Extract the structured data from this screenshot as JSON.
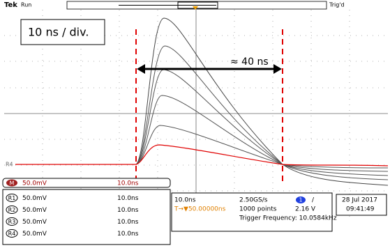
{
  "header": {
    "brand": "Tek",
    "status": "Run",
    "trigger_state": "Trig'd"
  },
  "annotations": {
    "scale": "10 ns / div.",
    "width": "≈ 40 ns"
  },
  "screen": {
    "ref_marker": "R4"
  },
  "math_row": {
    "label": "M",
    "scale": "50.0mV",
    "time": "10.0ns"
  },
  "ref_rows": [
    {
      "label": "R1",
      "scale": "50.0mV",
      "time": "10.0ns"
    },
    {
      "label": "R2",
      "scale": "50.0mV",
      "time": "10.0ns"
    },
    {
      "label": "R3",
      "scale": "50.0mV",
      "time": "10.0ns"
    },
    {
      "label": "R4",
      "scale": "50.0mV",
      "time": "10.0ns"
    }
  ],
  "acquisition": {
    "timebase": "10.0ns",
    "sample_rate": "2.50GS/s",
    "channel": "1",
    "slope": "/",
    "position": "T→▼50.00000ns",
    "record_length": "1000 points",
    "trigger_level": "2.16 V",
    "trigger_frequency": "Trigger Frequency: 10.0584kHz"
  },
  "clock": {
    "date": "28 Jul 2017",
    "time": "09:41:49"
  }
}
